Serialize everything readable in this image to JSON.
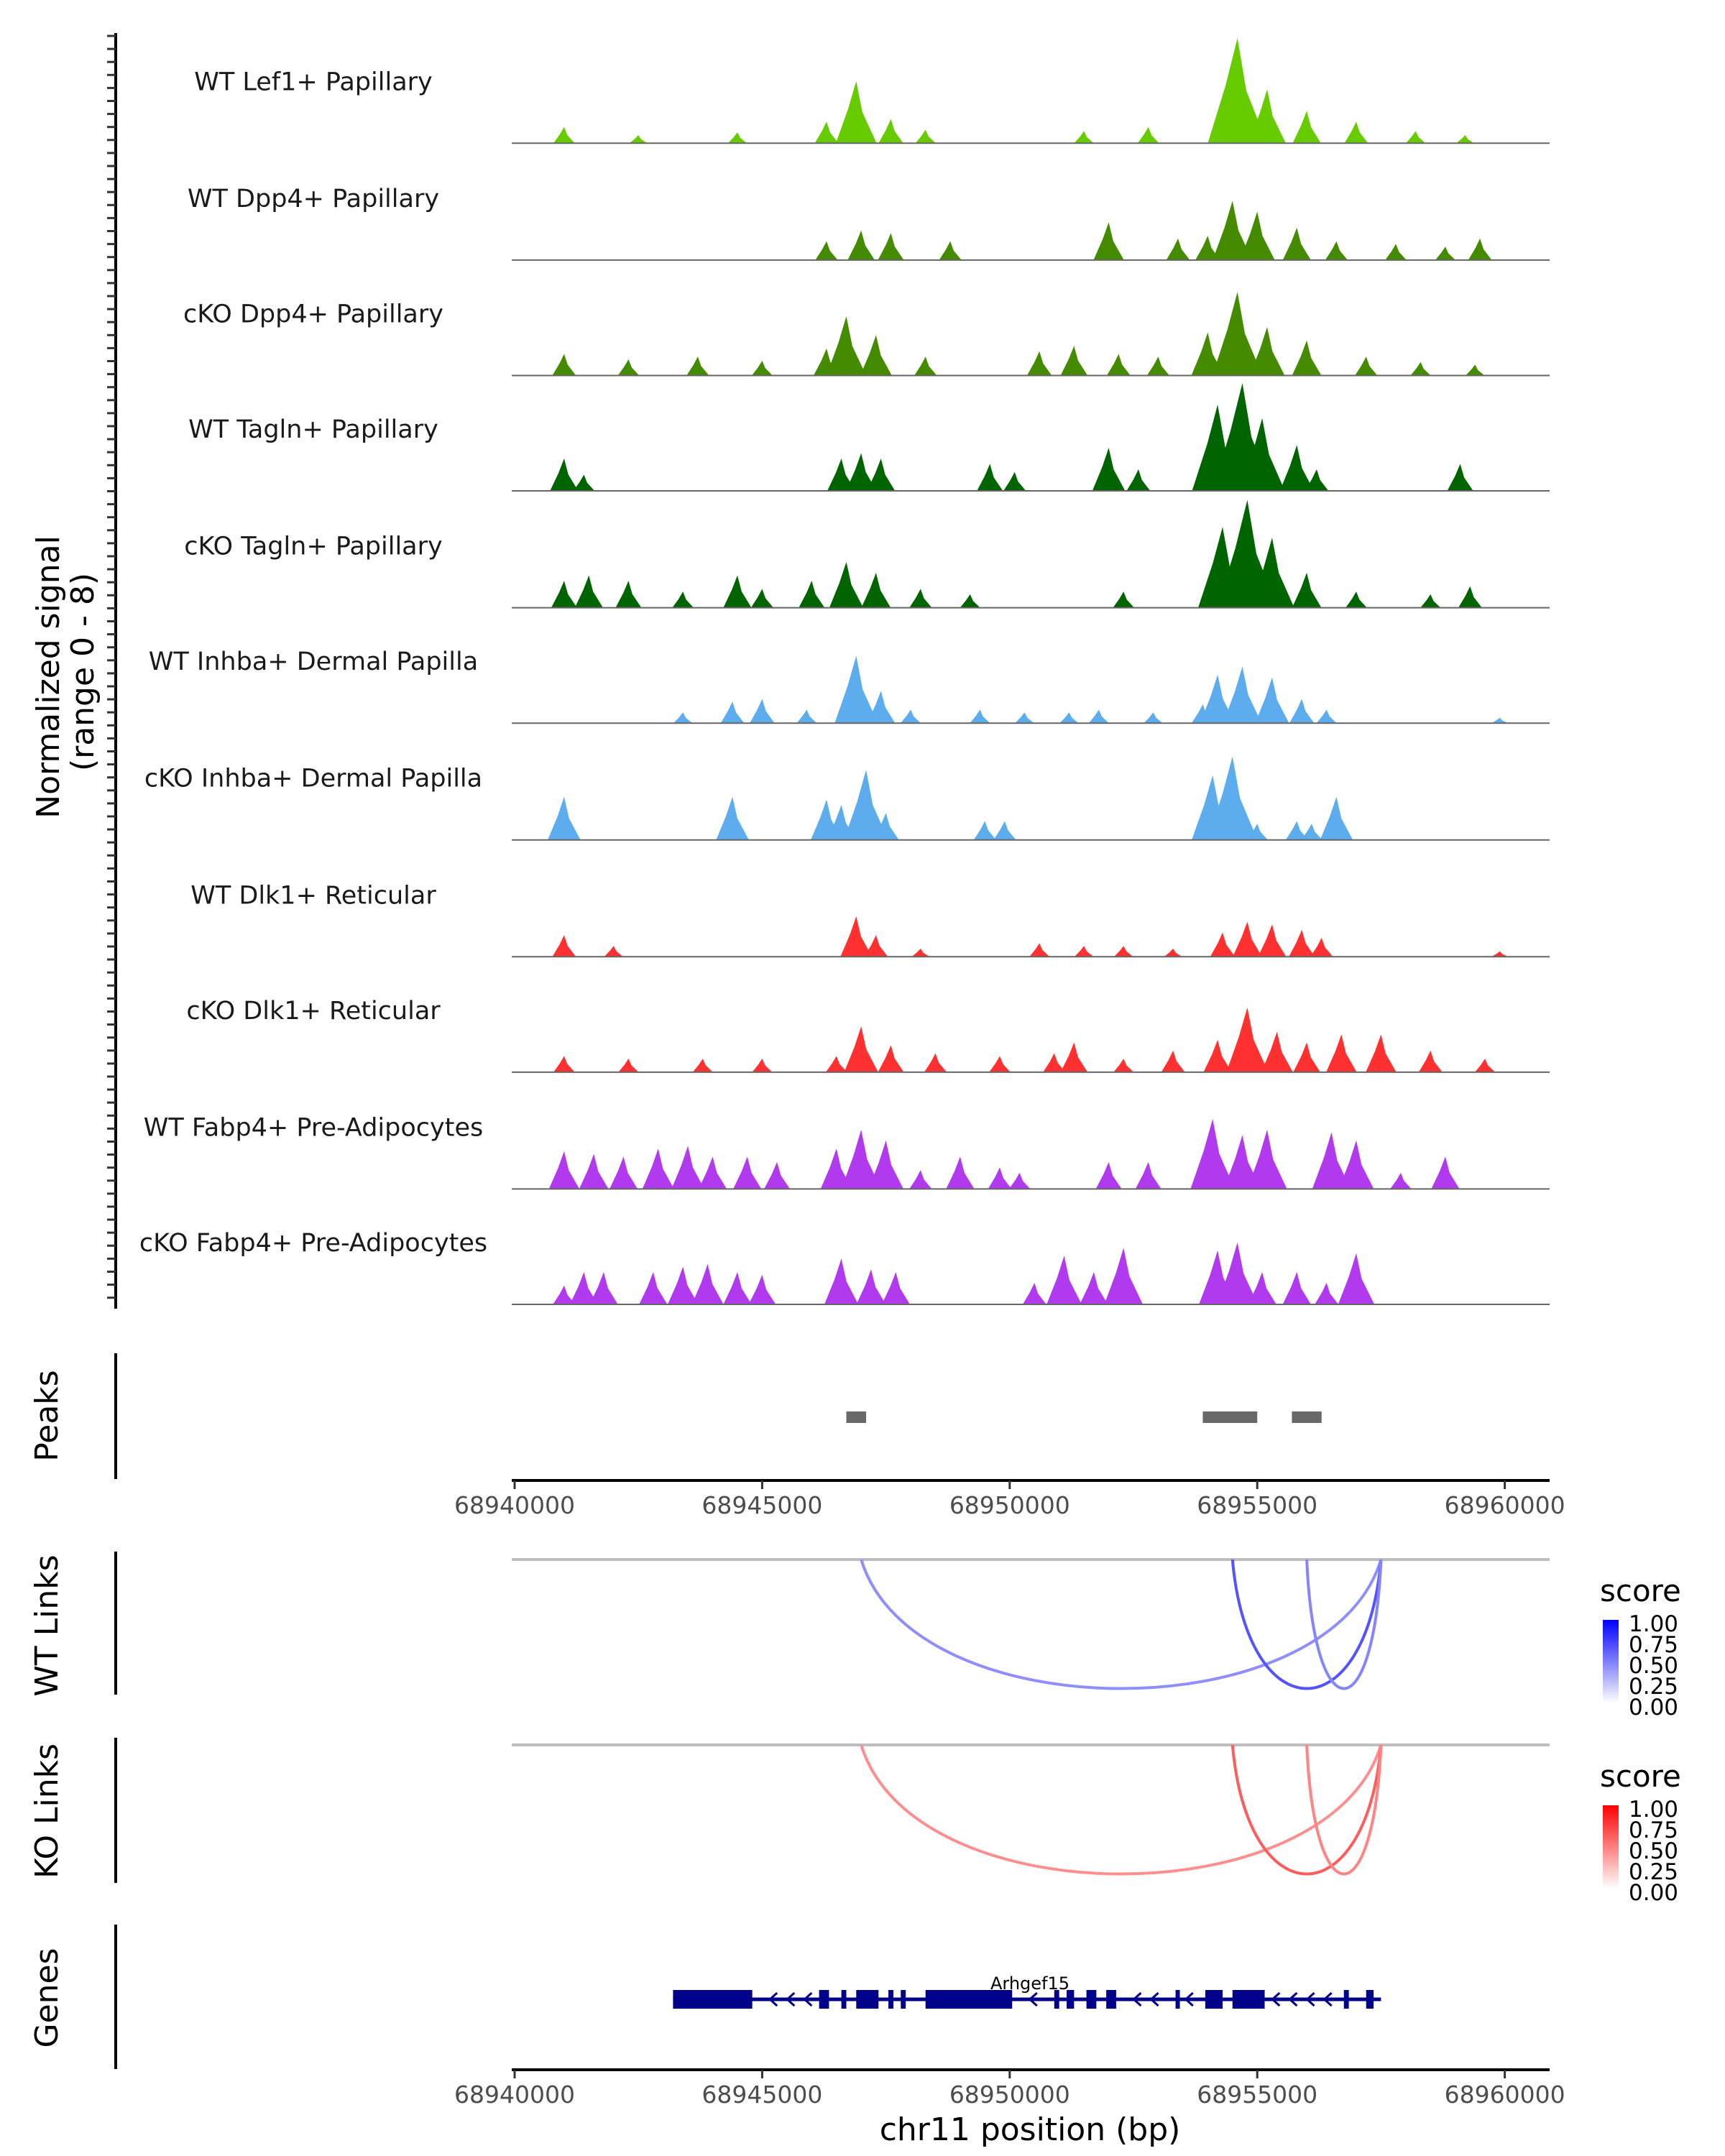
{
  "chart_data": {
    "type": "area",
    "title": "",
    "ylabel": "Normalized signal\n(range 0 - 8)",
    "ylabel_lines": [
      "Normalized signal",
      "(range 0 - 8)"
    ],
    "ylim": [
      0,
      8
    ],
    "xlabel": "chr11 position (bp)",
    "xlim": [
      68939700,
      68961000
    ],
    "x_ticks": [
      68940000,
      68945000,
      68950000,
      68955000,
      68960000
    ],
    "x_tick_labels": [
      "68940000",
      "68945000",
      "68950000",
      "68955000",
      "68960000"
    ],
    "coverage_tracks": [
      {
        "name": "WT Lef1+ Papillary",
        "color": "#66CC00",
        "peaks": [
          [
            68941000,
            1.2
          ],
          [
            68942500,
            0.6
          ],
          [
            68944500,
            0.8
          ],
          [
            68946300,
            1.6
          ],
          [
            68946900,
            4.6
          ],
          [
            68947600,
            1.8
          ],
          [
            68948300,
            1.0
          ],
          [
            68951500,
            0.9
          ],
          [
            68952800,
            1.2
          ],
          [
            68954400,
            3.2
          ],
          [
            68954600,
            7.8
          ],
          [
            68955200,
            4.0
          ],
          [
            68956000,
            2.4
          ],
          [
            68957000,
            1.6
          ],
          [
            68958200,
            0.9
          ],
          [
            68959200,
            0.6
          ]
        ]
      },
      {
        "name": "WT Dpp4+ Papillary",
        "color": "#458B00",
        "peaks": [
          [
            68946300,
            1.4
          ],
          [
            68947000,
            2.2
          ],
          [
            68947600,
            2.0
          ],
          [
            68948800,
            1.4
          ],
          [
            68952000,
            2.8
          ],
          [
            68953400,
            1.6
          ],
          [
            68954000,
            1.8
          ],
          [
            68954500,
            4.4
          ],
          [
            68955000,
            3.6
          ],
          [
            68955800,
            2.4
          ],
          [
            68956600,
            1.4
          ],
          [
            68957800,
            1.2
          ],
          [
            68958800,
            1.0
          ],
          [
            68959500,
            1.6
          ]
        ]
      },
      {
        "name": "cKO Dpp4+ Papillary",
        "color": "#458B00",
        "peaks": [
          [
            68941000,
            1.6
          ],
          [
            68942300,
            1.2
          ],
          [
            68943700,
            1.4
          ],
          [
            68945000,
            1.1
          ],
          [
            68946300,
            2.0
          ],
          [
            68946700,
            4.4
          ],
          [
            68947300,
            3.0
          ],
          [
            68948300,
            1.4
          ],
          [
            68950600,
            1.8
          ],
          [
            68951300,
            2.2
          ],
          [
            68952200,
            1.6
          ],
          [
            68953000,
            1.4
          ],
          [
            68954000,
            3.2
          ],
          [
            68954600,
            6.2
          ],
          [
            68955200,
            3.6
          ],
          [
            68956000,
            2.6
          ],
          [
            68957200,
            1.4
          ],
          [
            68958300,
            1.0
          ],
          [
            68959400,
            0.8
          ]
        ]
      },
      {
        "name": "WT Tagln+ Papillary",
        "color": "#006400",
        "peaks": [
          [
            68941000,
            2.4
          ],
          [
            68941400,
            1.2
          ],
          [
            68946600,
            2.4
          ],
          [
            68947000,
            2.8
          ],
          [
            68947400,
            2.4
          ],
          [
            68949600,
            2.0
          ],
          [
            68950100,
            1.4
          ],
          [
            68952000,
            3.2
          ],
          [
            68952600,
            1.6
          ],
          [
            68954200,
            6.4
          ],
          [
            68954700,
            8.0
          ],
          [
            68955100,
            5.4
          ],
          [
            68955800,
            3.4
          ],
          [
            68956200,
            1.6
          ],
          [
            68959100,
            2.0
          ]
        ]
      },
      {
        "name": "cKO Tagln+ Papillary",
        "color": "#006400",
        "peaks": [
          [
            68941000,
            2.0
          ],
          [
            68941500,
            2.4
          ],
          [
            68942300,
            2.0
          ],
          [
            68943400,
            1.2
          ],
          [
            68944500,
            2.4
          ],
          [
            68945000,
            1.4
          ],
          [
            68946000,
            2.0
          ],
          [
            68946700,
            3.4
          ],
          [
            68947300,
            2.6
          ],
          [
            68948200,
            1.4
          ],
          [
            68949200,
            1.0
          ],
          [
            68952300,
            1.2
          ],
          [
            68954300,
            6.0
          ],
          [
            68954800,
            8.0
          ],
          [
            68955300,
            5.2
          ],
          [
            68956000,
            2.6
          ],
          [
            68957000,
            1.2
          ],
          [
            68958500,
            1.0
          ],
          [
            68959300,
            1.6
          ]
        ]
      },
      {
        "name": "WT Inhba+ Dermal Papilla",
        "color": "#5CACEE",
        "peaks": [
          [
            68943400,
            0.8
          ],
          [
            68944400,
            1.6
          ],
          [
            68945000,
            1.8
          ],
          [
            68945900,
            1.0
          ],
          [
            68946900,
            5.0
          ],
          [
            68947400,
            2.4
          ],
          [
            68948000,
            1.0
          ],
          [
            68949400,
            1.0
          ],
          [
            68950300,
            0.8
          ],
          [
            68951200,
            0.8
          ],
          [
            68951800,
            1.0
          ],
          [
            68952900,
            0.8
          ],
          [
            68953900,
            1.4
          ],
          [
            68954200,
            3.6
          ],
          [
            68954700,
            4.2
          ],
          [
            68955300,
            3.4
          ],
          [
            68955900,
            1.8
          ],
          [
            68956400,
            1.0
          ],
          [
            68959900,
            0.4
          ]
        ]
      },
      {
        "name": "cKO Inhba+ Dermal Papilla",
        "color": "#5CACEE",
        "peaks": [
          [
            68941000,
            3.2
          ],
          [
            68944400,
            3.2
          ],
          [
            68946300,
            3.0
          ],
          [
            68946600,
            2.6
          ],
          [
            68947100,
            5.2
          ],
          [
            68947500,
            2.0
          ],
          [
            68949500,
            1.4
          ],
          [
            68949900,
            1.4
          ],
          [
            68954100,
            4.8
          ],
          [
            68954500,
            6.2
          ],
          [
            68955000,
            1.2
          ],
          [
            68955800,
            1.4
          ],
          [
            68956100,
            1.2
          ],
          [
            68956600,
            3.2
          ]
        ]
      },
      {
        "name": "WT Dlk1+ Reticular",
        "color": "#FF3030",
        "peaks": [
          [
            68941000,
            1.6
          ],
          [
            68942000,
            0.8
          ],
          [
            68946900,
            3.0
          ],
          [
            68947300,
            1.6
          ],
          [
            68948200,
            0.6
          ],
          [
            68950600,
            1.0
          ],
          [
            68951500,
            0.8
          ],
          [
            68952300,
            0.8
          ],
          [
            68953300,
            0.6
          ],
          [
            68954300,
            1.8
          ],
          [
            68954800,
            2.6
          ],
          [
            68955300,
            2.4
          ],
          [
            68955900,
            2.0
          ],
          [
            68956300,
            1.4
          ],
          [
            68959900,
            0.4
          ]
        ]
      },
      {
        "name": "cKO Dlk1+ Reticular",
        "color": "#FF3030",
        "peaks": [
          [
            68941000,
            1.2
          ],
          [
            68942300,
            1.0
          ],
          [
            68943800,
            1.0
          ],
          [
            68945000,
            1.0
          ],
          [
            68946500,
            1.2
          ],
          [
            68947000,
            3.4
          ],
          [
            68947600,
            2.0
          ],
          [
            68948500,
            1.4
          ],
          [
            68949800,
            1.2
          ],
          [
            68950900,
            1.4
          ],
          [
            68951300,
            2.2
          ],
          [
            68952300,
            1.0
          ],
          [
            68953300,
            1.6
          ],
          [
            68954200,
            2.4
          ],
          [
            68954800,
            4.8
          ],
          [
            68955400,
            3.0
          ],
          [
            68956000,
            2.2
          ],
          [
            68956700,
            2.8
          ],
          [
            68957500,
            2.8
          ],
          [
            68958500,
            1.6
          ],
          [
            68959600,
            1.0
          ]
        ]
      },
      {
        "name": "WT Fabp4+ Pre-Adipocytes",
        "color": "#B23AEE",
        "peaks": [
          [
            68941000,
            2.8
          ],
          [
            68941600,
            2.6
          ],
          [
            68942200,
            2.4
          ],
          [
            68942900,
            3.0
          ],
          [
            68943500,
            3.2
          ],
          [
            68944000,
            2.4
          ],
          [
            68944700,
            2.4
          ],
          [
            68945300,
            2.0
          ],
          [
            68946500,
            3.0
          ],
          [
            68947000,
            4.4
          ],
          [
            68947500,
            3.6
          ],
          [
            68948200,
            1.4
          ],
          [
            68949000,
            2.4
          ],
          [
            68949800,
            1.6
          ],
          [
            68950200,
            1.2
          ],
          [
            68952000,
            2.0
          ],
          [
            68952800,
            2.0
          ],
          [
            68954100,
            5.2
          ],
          [
            68954700,
            4.0
          ],
          [
            68955200,
            4.4
          ],
          [
            68956500,
            4.2
          ],
          [
            68957000,
            3.6
          ],
          [
            68957900,
            1.2
          ],
          [
            68958800,
            2.4
          ]
        ]
      },
      {
        "name": "cKO Fabp4+ Pre-Adipocytes",
        "color": "#B23AEE",
        "peaks": [
          [
            68941000,
            1.4
          ],
          [
            68941400,
            2.4
          ],
          [
            68941800,
            2.4
          ],
          [
            68942800,
            2.4
          ],
          [
            68943400,
            2.8
          ],
          [
            68943900,
            3.0
          ],
          [
            68944500,
            2.4
          ],
          [
            68945000,
            2.2
          ],
          [
            68946600,
            3.4
          ],
          [
            68947200,
            2.6
          ],
          [
            68947700,
            2.4
          ],
          [
            68950500,
            1.6
          ],
          [
            68951100,
            3.6
          ],
          [
            68951700,
            2.4
          ],
          [
            68952300,
            4.2
          ],
          [
            68954200,
            4.0
          ],
          [
            68954600,
            4.6
          ],
          [
            68955100,
            2.4
          ],
          [
            68955800,
            2.4
          ],
          [
            68956400,
            1.6
          ],
          [
            68957000,
            3.8
          ]
        ]
      }
    ],
    "peaks_track": {
      "label": "Peaks",
      "color": "#696969",
      "regions": [
        [
          68946700,
          68947100
        ],
        [
          68953900,
          68955000
        ],
        [
          68955700,
          68956300
        ]
      ]
    },
    "links": [
      {
        "label": "WT Links",
        "legend": {
          "title": "score",
          "ticks": [
            "1.00",
            "0.75",
            "0.50",
            "0.25",
            "0.00"
          ],
          "low": "#FFFFFF",
          "high": "#0000FF"
        },
        "arcs": [
          {
            "start": 68947000,
            "end": 68957500,
            "score": 0.3
          },
          {
            "start": 68954500,
            "end": 68957500,
            "score": 0.65
          },
          {
            "start": 68956000,
            "end": 68957500,
            "score": 0.35
          }
        ]
      },
      {
        "label": "KO Links",
        "legend": {
          "title": "score",
          "ticks": [
            "1.00",
            "0.75",
            "0.50",
            "0.25",
            "0.00"
          ],
          "low": "#FFFFFF",
          "high": "#FF0000"
        },
        "arcs": [
          {
            "start": 68947000,
            "end": 68957500,
            "score": 0.3
          },
          {
            "start": 68954500,
            "end": 68957500,
            "score": 0.6
          },
          {
            "start": 68956000,
            "end": 68957500,
            "score": 0.35
          }
        ]
      }
    ],
    "genes_track": {
      "label": "Genes",
      "color": "#00008B",
      "gene": {
        "name": "Arhgef15",
        "start": 68943200,
        "end": 68957500,
        "strand": "-",
        "exons": [
          [
            68943200,
            68944800
          ],
          [
            68946150,
            68946350
          ],
          [
            68946600,
            68946700
          ],
          [
            68946900,
            68947350
          ],
          [
            68947550,
            68947650
          ],
          [
            68947800,
            68947900
          ],
          [
            68948300,
            68950050
          ],
          [
            68950900,
            68951000
          ],
          [
            68951150,
            68951300
          ],
          [
            68951550,
            68951750
          ],
          [
            68951950,
            68952150
          ],
          [
            68953350,
            68953400
          ],
          [
            68953950,
            68954300
          ],
          [
            68954500,
            68955150
          ],
          [
            68956750,
            68956850
          ],
          [
            68957200,
            68957350
          ]
        ]
      }
    }
  }
}
